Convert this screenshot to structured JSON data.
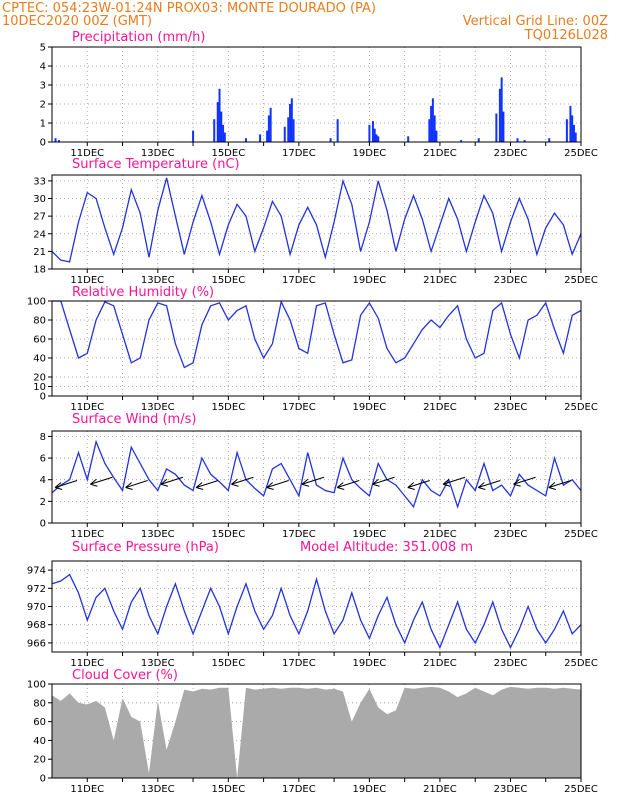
{
  "header": {
    "line1_left": "CPTEC:   054:23W-01:24N   PROX03: MONTE DOURADO (PA)",
    "line2_left": "10DEC2020 00Z (GMT)",
    "line2_right": "Vertical Grid Line: 00Z",
    "line3_right": "TQ0126L028"
  },
  "colors": {
    "header": "#e87d1e",
    "title": "#ff1493",
    "line": "#2233dd",
    "bar": "#1133ff",
    "cloud": "#aaaaaa"
  },
  "x_ticks": [
    "11DEC",
    "13DEC",
    "15DEC",
    "17DEC",
    "19DEC",
    "21DEC",
    "23DEC",
    "25DEC"
  ],
  "chart_data": [
    {
      "type": "bar",
      "title": "Precipitation (mm/h)",
      "ylim": [
        0,
        5
      ],
      "yticks": [
        "0",
        "1",
        "2",
        "3",
        "4",
        "5"
      ],
      "series": [
        {
          "x": [
            10.1,
            10.2,
            14.0,
            14.6,
            14.7,
            14.75,
            14.8,
            14.85,
            14.9,
            15.5,
            15.9,
            16.1,
            16.15,
            16.2,
            16.6,
            16.7,
            16.75,
            16.8,
            16.85,
            17.9,
            18.1,
            19.0,
            19.1,
            19.15,
            19.2,
            19.25,
            20.1,
            20.7,
            20.75,
            20.8,
            20.85,
            20.9,
            21.6,
            22.1,
            22.6,
            22.7,
            22.75,
            22.8,
            23.2,
            23.4,
            24.1,
            24.6,
            24.7,
            24.75,
            24.8,
            24.85
          ],
          "values": [
            0.2,
            0.1,
            0.6,
            1.2,
            2.1,
            2.8,
            1.6,
            0.9,
            0.5,
            0.2,
            0.4,
            0.6,
            1.4,
            1.8,
            0.8,
            1.3,
            2.0,
            2.3,
            1.2,
            0.2,
            1.2,
            0.9,
            1.1,
            0.7,
            0.4,
            0.3,
            0.3,
            1.2,
            1.9,
            2.3,
            1.4,
            0.6,
            0.1,
            0.2,
            1.5,
            2.8,
            3.4,
            1.6,
            0.2,
            0.1,
            0.2,
            1.2,
            1.9,
            1.4,
            0.9,
            0.5
          ]
        }
      ]
    },
    {
      "type": "line",
      "title": "Surface Temperature (nC)",
      "ylim": [
        18,
        34
      ],
      "yticks": [
        "18",
        "21",
        "24",
        "27",
        "30",
        "33"
      ],
      "series": [
        {
          "x": [
            10.0,
            10.25,
            10.5,
            10.75,
            11.0,
            11.25,
            11.5,
            11.75,
            12.0,
            12.25,
            12.5,
            12.75,
            13.0,
            13.25,
            13.5,
            13.75,
            14.0,
            14.25,
            14.5,
            14.75,
            15.0,
            15.25,
            15.5,
            15.75,
            16.0,
            16.25,
            16.5,
            16.75,
            17.0,
            17.25,
            17.5,
            17.75,
            18.0,
            18.25,
            18.5,
            18.75,
            19.0,
            19.25,
            19.5,
            19.75,
            20.0,
            20.25,
            20.5,
            20.75,
            21.0,
            21.25,
            21.5,
            21.75,
            22.0,
            22.25,
            22.5,
            22.75,
            23.0,
            23.25,
            23.5,
            23.75,
            24.0,
            24.25,
            24.5,
            24.75,
            25.0
          ],
          "values": [
            21,
            19.5,
            19.2,
            26,
            31,
            30,
            25,
            20.5,
            25,
            31.5,
            27.5,
            20,
            28,
            33.5,
            27,
            20.5,
            26,
            30.5,
            26,
            20.5,
            25.5,
            29,
            27,
            21,
            25,
            29.5,
            27,
            20.5,
            25.5,
            28.5,
            25.5,
            20,
            26,
            33,
            29,
            21,
            26,
            33,
            28,
            21,
            26.5,
            30.5,
            26.5,
            21,
            25.5,
            30,
            26.5,
            21,
            26,
            30.5,
            27.5,
            21,
            26,
            30,
            26.5,
            20.5,
            25,
            27.5,
            25.5,
            20.5,
            24
          ]
        }
      ]
    },
    {
      "type": "line",
      "title": "Relative Humidity (%)",
      "ylim": [
        0,
        100
      ],
      "yticks": [
        "0",
        "10",
        "20",
        "40",
        "60",
        "80",
        "100"
      ],
      "series": [
        {
          "x": [
            10.0,
            10.25,
            10.5,
            10.75,
            11.0,
            11.25,
            11.5,
            11.75,
            12.0,
            12.25,
            12.5,
            12.75,
            13.0,
            13.25,
            13.5,
            13.75,
            14.0,
            14.25,
            14.5,
            14.75,
            15.0,
            15.25,
            15.5,
            15.75,
            16.0,
            16.25,
            16.5,
            16.75,
            17.0,
            17.25,
            17.5,
            17.75,
            18.0,
            18.25,
            18.5,
            18.75,
            19.0,
            19.25,
            19.5,
            19.75,
            20.0,
            20.25,
            20.5,
            20.75,
            21.0,
            21.25,
            21.5,
            21.75,
            22.0,
            22.25,
            22.5,
            22.75,
            23.0,
            23.25,
            23.5,
            23.75,
            24.0,
            24.25,
            24.5,
            24.75,
            25.0
          ],
          "values": [
            100,
            100,
            70,
            40,
            45,
            80,
            99,
            95,
            65,
            35,
            40,
            80,
            98,
            95,
            55,
            30,
            35,
            75,
            95,
            98,
            80,
            90,
            95,
            60,
            40,
            55,
            99,
            80,
            50,
            45,
            95,
            98,
            65,
            35,
            38,
            85,
            98,
            82,
            50,
            35,
            40,
            55,
            70,
            80,
            72,
            85,
            95,
            60,
            40,
            45,
            90,
            98,
            65,
            40,
            80,
            85,
            98,
            70,
            45,
            85,
            90
          ]
        }
      ]
    },
    {
      "type": "line",
      "title": "Surface Wind (m/s)",
      "ylim": [
        0,
        8.5
      ],
      "yticks": [
        "0",
        "2",
        "4",
        "6",
        "8"
      ],
      "series": [
        {
          "x": [
            10.0,
            10.25,
            10.5,
            10.75,
            11.0,
            11.25,
            11.5,
            11.75,
            12.0,
            12.25,
            12.5,
            12.75,
            13.0,
            13.25,
            13.5,
            13.75,
            14.0,
            14.25,
            14.5,
            14.75,
            15.0,
            15.25,
            15.5,
            15.75,
            16.0,
            16.25,
            16.5,
            16.75,
            17.0,
            17.25,
            17.5,
            17.75,
            18.0,
            18.25,
            18.5,
            18.75,
            19.0,
            19.25,
            19.5,
            19.75,
            20.0,
            20.25,
            20.5,
            20.75,
            21.0,
            21.25,
            21.5,
            21.75,
            22.0,
            22.25,
            22.5,
            22.75,
            23.0,
            23.25,
            23.5,
            23.75,
            24.0,
            24.25,
            24.5,
            24.75,
            25.0
          ],
          "values": [
            2.8,
            3.5,
            4,
            6.5,
            4,
            7.5,
            5.5,
            4.2,
            3,
            7,
            5.5,
            4,
            3,
            5,
            4.5,
            3.5,
            3,
            6,
            4.5,
            3.8,
            3,
            6.5,
            4,
            3.2,
            2.5,
            5,
            5.5,
            4,
            2.5,
            6.5,
            3.5,
            3,
            2.8,
            6,
            4,
            3.2,
            2.5,
            5.5,
            4,
            3.5,
            2.5,
            1.5,
            4,
            3,
            2.5,
            4,
            1.5,
            4,
            3,
            5.5,
            3,
            3.5,
            2.5,
            4.5,
            3.5,
            3,
            2.5,
            6,
            3.5,
            4,
            3
          ]
        }
      ]
    },
    {
      "type": "line",
      "title": "Surface Pressure (hPa)",
      "subtitle": "Model Altitude: 351.008 m",
      "ylim": [
        965,
        975
      ],
      "yticks": [
        "966",
        "968",
        "970",
        "972",
        "974"
      ],
      "series": [
        {
          "x": [
            10.0,
            10.25,
            10.5,
            10.75,
            11.0,
            11.25,
            11.5,
            11.75,
            12.0,
            12.25,
            12.5,
            12.75,
            13.0,
            13.25,
            13.5,
            13.75,
            14.0,
            14.25,
            14.5,
            14.75,
            15.0,
            15.25,
            15.5,
            15.75,
            16.0,
            16.25,
            16.5,
            16.75,
            17.0,
            17.25,
            17.5,
            17.75,
            18.0,
            18.25,
            18.5,
            18.75,
            19.0,
            19.25,
            19.5,
            19.75,
            20.0,
            20.25,
            20.5,
            20.75,
            21.0,
            21.25,
            21.5,
            21.75,
            22.0,
            22.25,
            22.5,
            22.75,
            23.0,
            23.25,
            23.5,
            23.75,
            24.0,
            24.25,
            24.5,
            24.75,
            25.0
          ],
          "values": [
            972.5,
            972.8,
            973.5,
            971.5,
            968.5,
            971,
            972,
            969.5,
            967.5,
            970.5,
            972,
            969,
            967,
            970,
            972.5,
            969.5,
            967,
            969.5,
            972,
            970,
            967,
            970,
            972.5,
            969.5,
            967.5,
            969,
            972,
            969,
            967,
            969.5,
            973,
            969.5,
            967,
            968.5,
            971.5,
            968.5,
            966.5,
            969,
            971,
            968,
            966,
            968.5,
            970.5,
            967.5,
            965.5,
            968,
            970.5,
            967.5,
            966,
            968,
            970.5,
            967.5,
            965.5,
            967.5,
            970,
            967.5,
            966,
            967.5,
            969.5,
            967,
            968
          ]
        }
      ]
    },
    {
      "type": "area",
      "title": "Cloud Cover (%)",
      "ylim": [
        0,
        100
      ],
      "yticks": [
        "0",
        "20",
        "40",
        "60",
        "80",
        "100"
      ],
      "series": [
        {
          "x": [
            10.0,
            10.25,
            10.5,
            10.75,
            11.0,
            11.25,
            11.5,
            11.75,
            12.0,
            12.25,
            12.5,
            12.75,
            13.0,
            13.25,
            13.5,
            13.75,
            14.0,
            14.25,
            14.5,
            14.75,
            15.0,
            15.25,
            15.5,
            15.75,
            16.0,
            16.25,
            16.5,
            16.75,
            17.0,
            17.25,
            17.5,
            17.75,
            18.0,
            18.25,
            18.5,
            18.75,
            19.0,
            19.25,
            19.5,
            19.75,
            20.0,
            20.25,
            20.5,
            20.75,
            21.0,
            21.25,
            21.5,
            21.75,
            22.0,
            22.25,
            22.5,
            22.75,
            23.0,
            23.25,
            23.5,
            23.75,
            24.0,
            24.25,
            24.5,
            24.75,
            25.0
          ],
          "values": [
            88,
            82,
            90,
            80,
            78,
            82,
            75,
            40,
            85,
            65,
            60,
            5,
            82,
            30,
            60,
            94,
            92,
            95,
            94,
            96,
            96,
            0,
            96,
            94,
            95,
            96,
            95,
            96,
            96,
            95,
            96,
            94,
            95,
            92,
            60,
            80,
            95,
            75,
            68,
            72,
            96,
            95,
            96,
            97,
            96,
            92,
            86,
            90,
            96,
            92,
            88,
            94,
            97,
            96,
            95,
            96,
            96,
            95,
            96,
            95,
            94
          ]
        }
      ]
    }
  ]
}
